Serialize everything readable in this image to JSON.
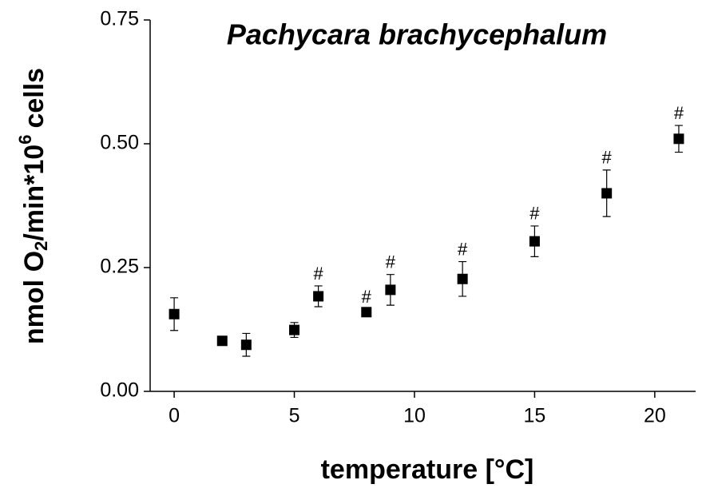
{
  "chart_data": {
    "type": "scatter",
    "title": "Pachycara brachycephalum",
    "xlabel": "temperature [°C]",
    "ylabel": [
      "nmol O",
      "2",
      "/min*10",
      "6",
      "cells"
    ],
    "x": [
      0,
      2,
      3,
      5,
      6,
      8,
      9,
      12,
      15,
      18,
      21
    ],
    "y": [
      0.156,
      0.102,
      0.094,
      0.124,
      0.192,
      0.16,
      0.205,
      0.227,
      0.303,
      0.4,
      0.51
    ],
    "errors": [
      0.033,
      0.005,
      0.023,
      0.015,
      0.021,
      0.006,
      0.031,
      0.035,
      0.031,
      0.047,
      0.027
    ],
    "labels": [
      null,
      null,
      null,
      null,
      "#",
      "#",
      "#",
      "#",
      "#",
      "#",
      "#"
    ],
    "color": "#000000",
    "xlim": [
      -1,
      21.7
    ],
    "ylim": [
      0,
      0.75
    ],
    "xticks": [
      0,
      5,
      10,
      15,
      20
    ],
    "yticks": [
      {
        "value": 0,
        "label": "0.00"
      },
      {
        "value": 0.25,
        "label": "0.25"
      },
      {
        "value": 0.5,
        "label": "0.50"
      },
      {
        "value": 0.75,
        "label": "0.75"
      }
    ]
  }
}
